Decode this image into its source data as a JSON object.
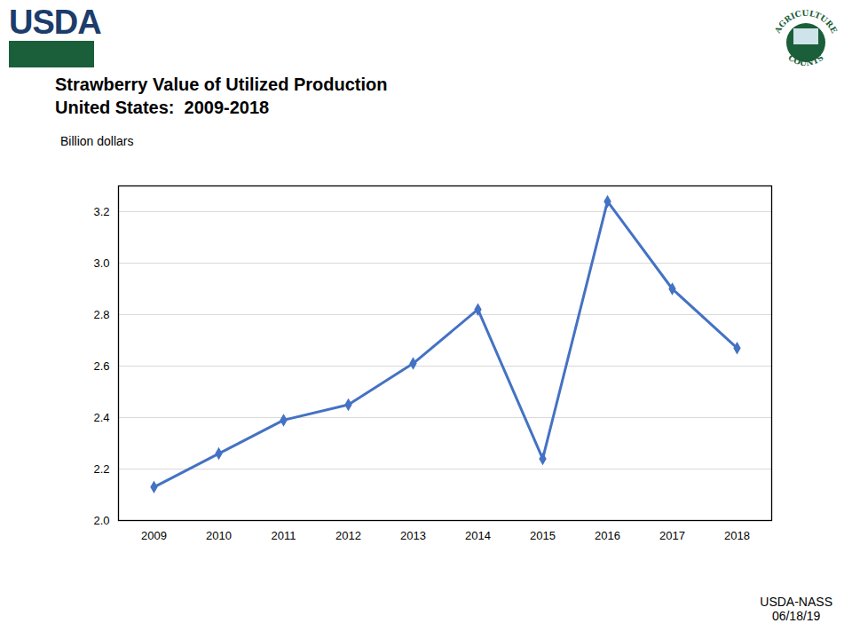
{
  "chart_data": {
    "type": "line",
    "title": "Strawberry Value of Utilized Production",
    "subtitle": "United States:  2009-2018",
    "y_label": "Billion dollars",
    "categories": [
      "2009",
      "2010",
      "2011",
      "2012",
      "2013",
      "2014",
      "2015",
      "2016",
      "2017",
      "2018"
    ],
    "values": [
      2.13,
      2.26,
      2.39,
      2.45,
      2.61,
      2.82,
      2.24,
      3.24,
      2.9,
      2.67
    ],
    "color": "#4472c4",
    "marker": "diamond",
    "ylim": [
      2.0,
      3.3
    ],
    "yticks": [
      {
        "value": 2.0,
        "label": "2.0"
      },
      2.2,
      2.4,
      2.6,
      2.8,
      {
        "value": 3.0,
        "label": "3.0"
      },
      3.2
    ],
    "grid": true,
    "logo": "USDA",
    "badge": [
      "AGRICULTURE",
      "COUNTS"
    ],
    "source": "USDA-NASS",
    "date": "06/18/19"
  }
}
